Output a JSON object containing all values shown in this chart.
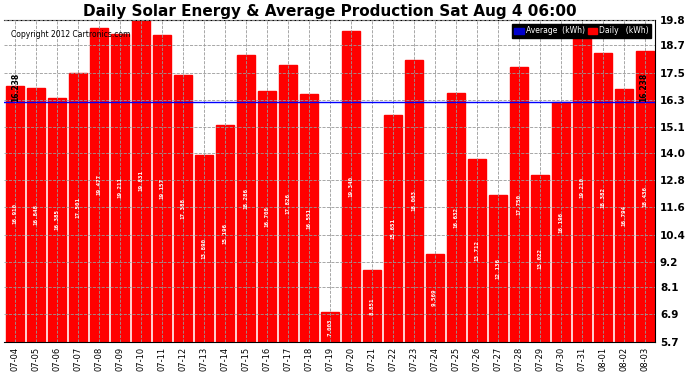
{
  "title": "Daily Solar Energy & Average Production Sat Aug 4 06:00",
  "copyright": "Copyright 2012 Cartronics.com",
  "average": 16.238,
  "categories": [
    "07-04",
    "07-05",
    "07-06",
    "07-07",
    "07-08",
    "07-09",
    "07-10",
    "07-11",
    "07-12",
    "07-13",
    "07-14",
    "07-15",
    "07-16",
    "07-17",
    "07-18",
    "07-19",
    "07-20",
    "07-21",
    "07-22",
    "07-23",
    "07-24",
    "07-25",
    "07-26",
    "07-27",
    "07-28",
    "07-29",
    "07-30",
    "07-31",
    "08-01",
    "08-02",
    "08-03"
  ],
  "values": [
    16.91,
    16.848,
    16.385,
    17.501,
    19.477,
    19.211,
    19.831,
    19.157,
    17.388,
    13.89,
    15.196,
    18.286,
    16.708,
    17.826,
    16.551,
    7.003,
    19.34,
    8.851,
    15.651,
    18.063,
    9.569,
    16.632,
    13.712,
    12.136,
    17.75,
    13.022,
    16.196,
    19.21,
    18.382,
    16.794,
    18.436
  ],
  "bar_color": "#ff0000",
  "avg_line_color": "#0000ff",
  "background_color": "#ffffff",
  "grid_color": "#999999",
  "ylim_min": 5.7,
  "ylim_max": 19.8,
  "yticks": [
    5.7,
    6.9,
    8.1,
    9.2,
    10.4,
    11.6,
    12.8,
    14.0,
    15.1,
    16.3,
    17.5,
    18.7,
    19.8
  ],
  "legend_avg_color": "#0000cc",
  "legend_daily_color": "#ff0000",
  "title_fontsize": 11,
  "bar_width": 0.85
}
